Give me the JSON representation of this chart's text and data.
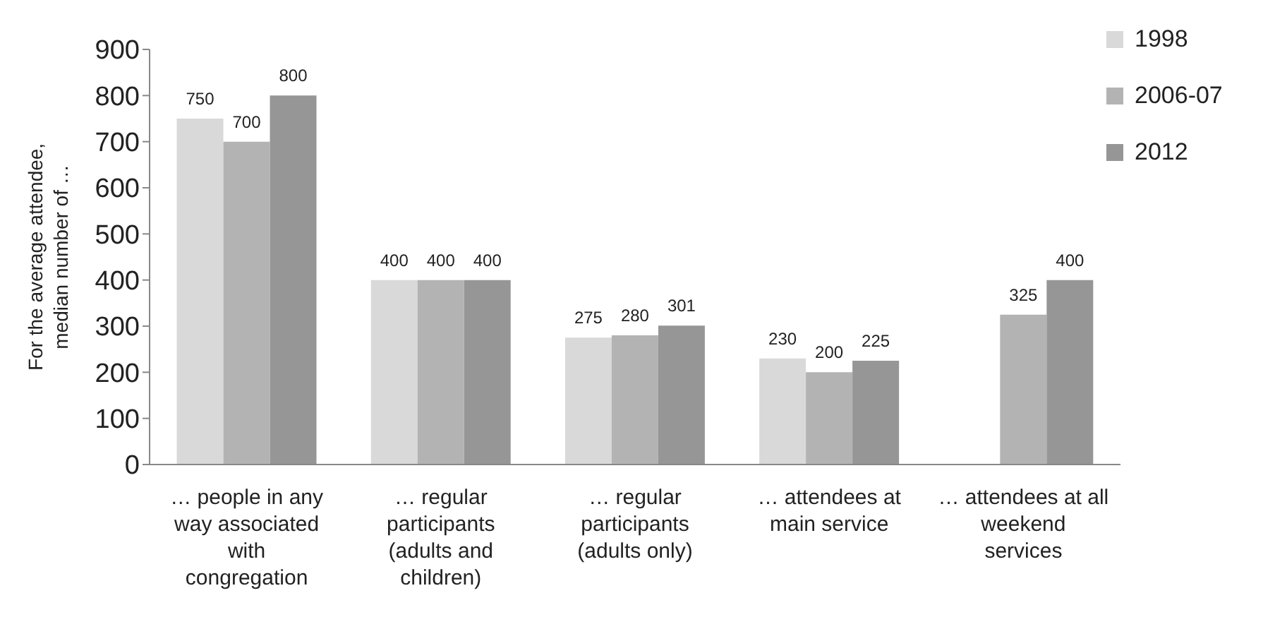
{
  "chart_data": {
    "type": "bar",
    "ylabel": "For the average attendee, median number of …",
    "categories": [
      "… people in any way associated with congregation",
      "… regular participants (adults and children)",
      "… regular participants (adults only)",
      "… attendees at main service",
      "… attendees at all weekend services"
    ],
    "series": [
      {
        "name": "1998",
        "color": "#d9d9d9",
        "values": [
          750,
          400,
          275,
          230,
          null
        ]
      },
      {
        "name": "2006-07",
        "color": "#b3b3b3",
        "values": [
          700,
          400,
          280,
          200,
          325
        ]
      },
      {
        "name": "2012",
        "color": "#969696",
        "values": [
          800,
          400,
          301,
          225,
          400
        ]
      }
    ],
    "ylim": [
      0,
      900
    ],
    "yticks": [
      0,
      100,
      200,
      300,
      400,
      500,
      600,
      700,
      800,
      900
    ],
    "grid": false,
    "legend": "top right",
    "data_labels": true
  }
}
